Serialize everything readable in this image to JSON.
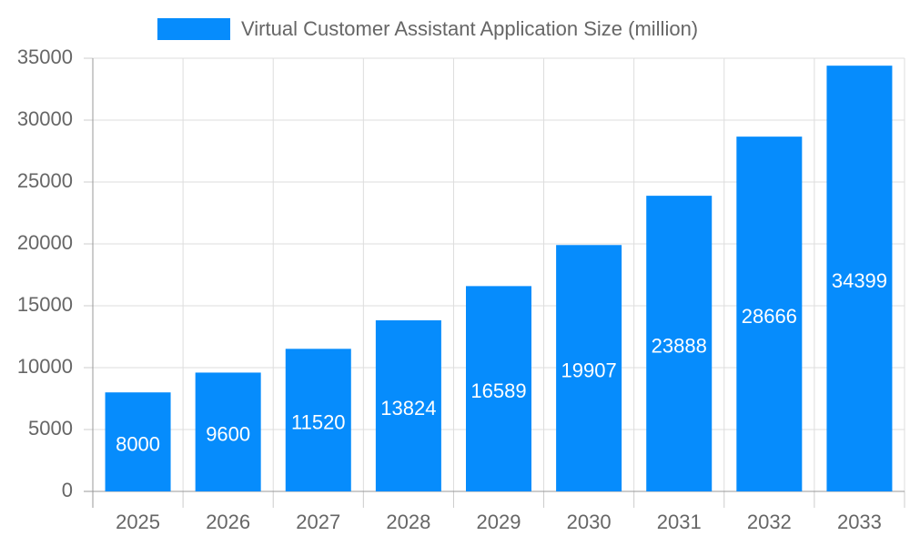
{
  "chart_data": {
    "type": "bar",
    "categories": [
      "2025",
      "2026",
      "2027",
      "2028",
      "2029",
      "2030",
      "2031",
      "2032",
      "2033"
    ],
    "series": [
      {
        "name": "Virtual Customer Assistant Application Size (million)",
        "color": "#068cfc",
        "values": [
          8000,
          9600,
          11520,
          13824,
          16589,
          19907,
          23888,
          28666,
          34399
        ]
      }
    ],
    "ylim": [
      0,
      35000
    ],
    "yticks": [
      0,
      5000,
      10000,
      15000,
      20000,
      25000,
      30000,
      35000
    ],
    "grid": true,
    "legend": "top",
    "data_labels": true
  }
}
